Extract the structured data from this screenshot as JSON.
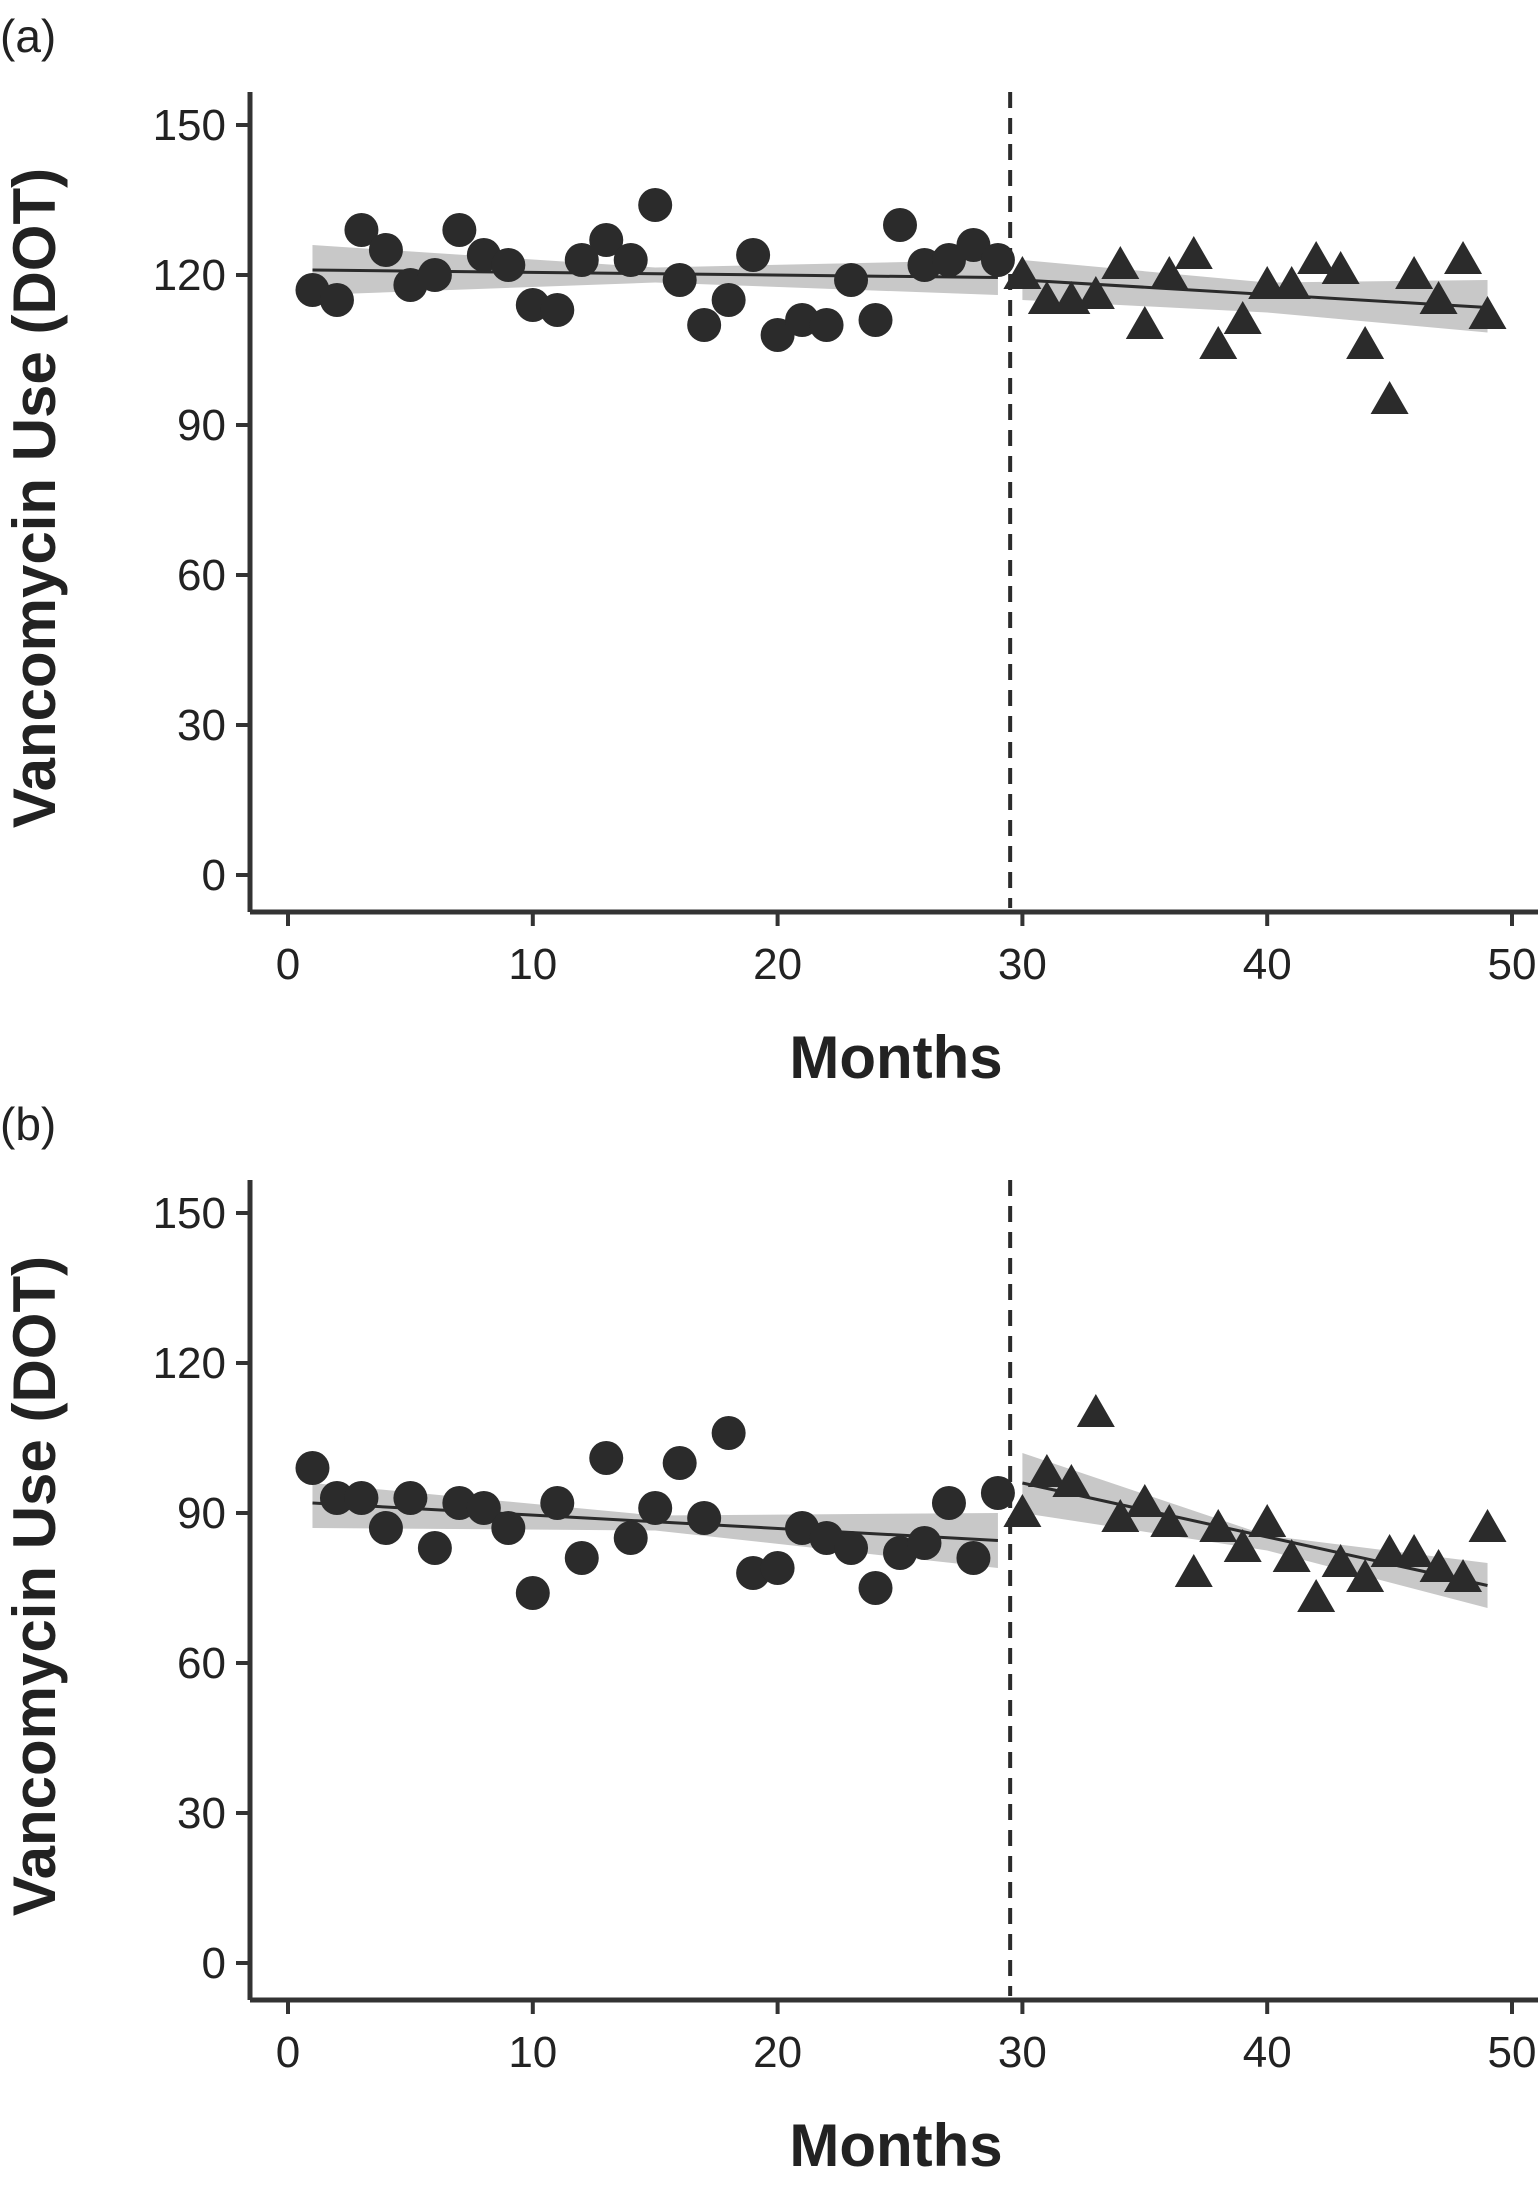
{
  "chart_data": [
    {
      "panel_label": "(a)",
      "type": "scatter",
      "xlabel": "Months",
      "ylabel": "Vancomycin Use (DOT)",
      "xlim": [
        0,
        50
      ],
      "ylim": [
        0,
        150
      ],
      "xticks": [
        "0",
        "10",
        "20",
        "30",
        "40",
        "50"
      ],
      "yticks": [
        "0",
        "30",
        "60",
        "90",
        "120",
        "150"
      ],
      "intervention_x": 29.5,
      "marker_color": "#2b2b2b",
      "band_color": "#c8c8c8",
      "pre": {
        "x": [
          1,
          2,
          3,
          4,
          5,
          6,
          7,
          8,
          9,
          10,
          11,
          12,
          13,
          14,
          15,
          16,
          17,
          18,
          19,
          20,
          21,
          22,
          23,
          24,
          25,
          26,
          27,
          28,
          29
        ],
        "y": [
          117,
          115,
          129,
          125,
          118,
          120,
          129,
          124,
          122,
          114,
          113,
          123,
          127,
          123,
          134,
          119,
          110,
          115,
          124,
          108,
          111,
          110,
          119,
          111,
          130,
          122,
          123,
          126,
          123
        ],
        "trend": {
          "x": [
            1,
            29
          ],
          "y": [
            121,
            119.5
          ]
        },
        "band": {
          "x": [
            1,
            15,
            29
          ],
          "upper": [
            126,
            121.5,
            123
          ],
          "lower": [
            116,
            118.5,
            116
          ]
        }
      },
      "post": {
        "x": [
          30,
          31,
          32,
          33,
          34,
          35,
          36,
          37,
          38,
          39,
          40,
          41,
          42,
          43,
          44,
          45,
          46,
          47,
          48,
          49
        ],
        "y": [
          120,
          115,
          115,
          116,
          122,
          110,
          120,
          124,
          106,
          111,
          118,
          118,
          123,
          121,
          106,
          95,
          120,
          115,
          123,
          112
        ],
        "trend": {
          "x": [
            30,
            49
          ],
          "y": [
            119,
            113.5
          ]
        },
        "band": {
          "x": [
            30,
            40,
            49
          ],
          "upper": [
            123,
            118.5,
            119
          ],
          "lower": [
            115,
            112.5,
            108.5
          ]
        }
      }
    },
    {
      "panel_label": "(b)",
      "type": "scatter",
      "xlabel": "Months",
      "ylabel": "Vancomycin Use (DOT)",
      "xlim": [
        0,
        50
      ],
      "ylim": [
        0,
        150
      ],
      "xticks": [
        "0",
        "10",
        "20",
        "30",
        "40",
        "50"
      ],
      "yticks": [
        "0",
        "30",
        "60",
        "90",
        "120",
        "150"
      ],
      "intervention_x": 29.5,
      "marker_color": "#2b2b2b",
      "band_color": "#c8c8c8",
      "pre": {
        "x": [
          1,
          2,
          3,
          4,
          5,
          6,
          7,
          8,
          9,
          10,
          11,
          12,
          13,
          14,
          15,
          16,
          17,
          18,
          19,
          20,
          21,
          22,
          23,
          24,
          25,
          26,
          27,
          28,
          29
        ],
        "y": [
          99,
          93,
          93,
          87,
          93,
          83,
          92,
          91,
          87,
          74,
          92,
          81,
          101,
          85,
          91,
          100,
          89,
          106,
          78,
          79,
          87,
          85,
          83,
          75,
          82,
          84,
          92,
          81,
          94
        ],
        "trend": {
          "x": [
            1,
            29
          ],
          "y": [
            92,
            84.5
          ]
        },
        "band": {
          "x": [
            1,
            15,
            29
          ],
          "upper": [
            96,
            89.5,
            90
          ],
          "lower": [
            87,
            86.5,
            79
          ]
        }
      },
      "post": {
        "x": [
          30,
          31,
          32,
          33,
          34,
          35,
          36,
          37,
          38,
          39,
          40,
          41,
          42,
          43,
          44,
          45,
          46,
          47,
          48,
          49
        ],
        "y": [
          90,
          98,
          96,
          110,
          89,
          92,
          88,
          78,
          87,
          83,
          88,
          81,
          73,
          80,
          77,
          82,
          82,
          79,
          77,
          87
        ],
        "trend": {
          "x": [
            30,
            49
          ],
          "y": [
            96,
            75.5
          ]
        },
        "band": {
          "x": [
            30,
            40,
            49
          ],
          "upper": [
            102,
            85.5,
            80
          ],
          "lower": [
            90,
            82.5,
            71
          ]
        }
      }
    }
  ]
}
